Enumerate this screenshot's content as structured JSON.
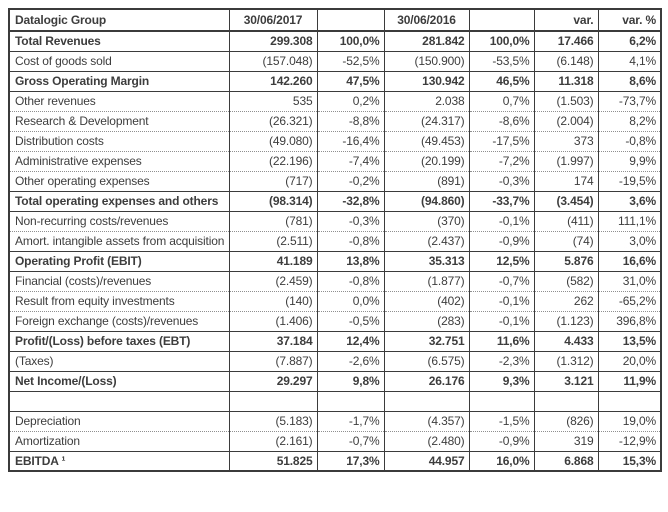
{
  "table": {
    "title_cell": "Datalogic Group",
    "columns": [
      "30/06/2017",
      "",
      "30/06/2016",
      "",
      "var.",
      "var. %"
    ],
    "colors": {
      "text": "#3d3d3d",
      "border": "#3b3b3b",
      "dotted": "#8f8f8f",
      "background": "#ffffff"
    },
    "rows": [
      {
        "label": "Total Revenues",
        "cells": [
          "299.308",
          "100,0%",
          "281.842",
          "100,0%",
          "17.466",
          "6,2%"
        ],
        "bold": true
      },
      {
        "label": "Cost of goods sold",
        "cells": [
          "(157.048)",
          "-52,5%",
          "(150.900)",
          "-53,5%",
          "(6.148)",
          "4,1%"
        ]
      },
      {
        "label": "Gross Operating Margin",
        "cells": [
          "142.260",
          "47,5%",
          "130.942",
          "46,5%",
          "11.318",
          "8,6%"
        ],
        "bold": true
      },
      {
        "label": "Other revenues",
        "cells": [
          "535",
          "0,2%",
          "2.038",
          "0,7%",
          "(1.503)",
          "-73,7%"
        ]
      },
      {
        "label": "Research & Development",
        "cells": [
          "(26.321)",
          "-8,8%",
          "(24.317)",
          "-8,6%",
          "(2.004)",
          "8,2%"
        ]
      },
      {
        "label": "Distribution costs",
        "cells": [
          "(49.080)",
          "-16,4%",
          "(49.453)",
          "-17,5%",
          "373",
          "-0,8%"
        ]
      },
      {
        "label": "Administrative expenses",
        "cells": [
          "(22.196)",
          "-7,4%",
          "(20.199)",
          "-7,2%",
          "(1.997)",
          "9,9%"
        ]
      },
      {
        "label": "Other operating expenses",
        "cells": [
          "(717)",
          "-0,2%",
          "(891)",
          "-0,3%",
          "174",
          "-19,5%"
        ]
      },
      {
        "label": "Total operating expenses and others",
        "cells": [
          "(98.314)",
          "-32,8%",
          "(94.860)",
          "-33,7%",
          "(3.454)",
          "3,6%"
        ],
        "bold": true
      },
      {
        "label": "Non-recurring costs/revenues",
        "cells": [
          "(781)",
          "-0,3%",
          "(370)",
          "-0,1%",
          "(411)",
          "111,1%"
        ]
      },
      {
        "label": "Amort. intangible assets from acquisition",
        "cells": [
          "(2.511)",
          "-0,8%",
          "(2.437)",
          "-0,9%",
          "(74)",
          "3,0%"
        ]
      },
      {
        "label": "Operating Profit (EBIT)",
        "cells": [
          "41.189",
          "13,8%",
          "35.313",
          "12,5%",
          "5.876",
          "16,6%"
        ],
        "bold": true
      },
      {
        "label": "Financial (costs)/revenues",
        "cells": [
          "(2.459)",
          "-0,8%",
          "(1.877)",
          "-0,7%",
          "(582)",
          "31,0%"
        ]
      },
      {
        "label": "Result from equity investments",
        "cells": [
          "(140)",
          "0,0%",
          "(402)",
          "-0,1%",
          "262",
          "-65,2%"
        ]
      },
      {
        "label": "Foreign exchange (costs)/revenues",
        "cells": [
          "(1.406)",
          "-0,5%",
          "(283)",
          "-0,1%",
          "(1.123)",
          "396,8%"
        ]
      },
      {
        "label": "Profit/(Loss) before taxes (EBT)",
        "cells": [
          "37.184",
          "12,4%",
          "32.751",
          "11,6%",
          "4.433",
          "13,5%"
        ],
        "bold": true
      },
      {
        "label": "(Taxes)",
        "cells": [
          "(7.887)",
          "-2,6%",
          "(6.575)",
          "-2,3%",
          "(1.312)",
          "20,0%"
        ]
      },
      {
        "label": "Net Income/(Loss)",
        "cells": [
          "29.297",
          "9,8%",
          "26.176",
          "9,3%",
          "3.121",
          "11,9%"
        ],
        "bold": true
      },
      {
        "label": "",
        "cells": [
          "",
          "",
          "",
          "",
          "",
          ""
        ],
        "empty": true
      },
      {
        "label": "Depreciation",
        "cells": [
          "(5.183)",
          "-1,7%",
          "(4.357)",
          "-1,5%",
          "(826)",
          "19,0%"
        ]
      },
      {
        "label": "Amortization",
        "cells": [
          "(2.161)",
          "-0,7%",
          "(2.480)",
          "-0,9%",
          "319",
          "-12,9%"
        ]
      },
      {
        "label": "EBITDA ¹",
        "cells": [
          "51.825",
          "17,3%",
          "44.957",
          "16,0%",
          "6.868",
          "15,3%"
        ],
        "bold": true
      }
    ]
  }
}
